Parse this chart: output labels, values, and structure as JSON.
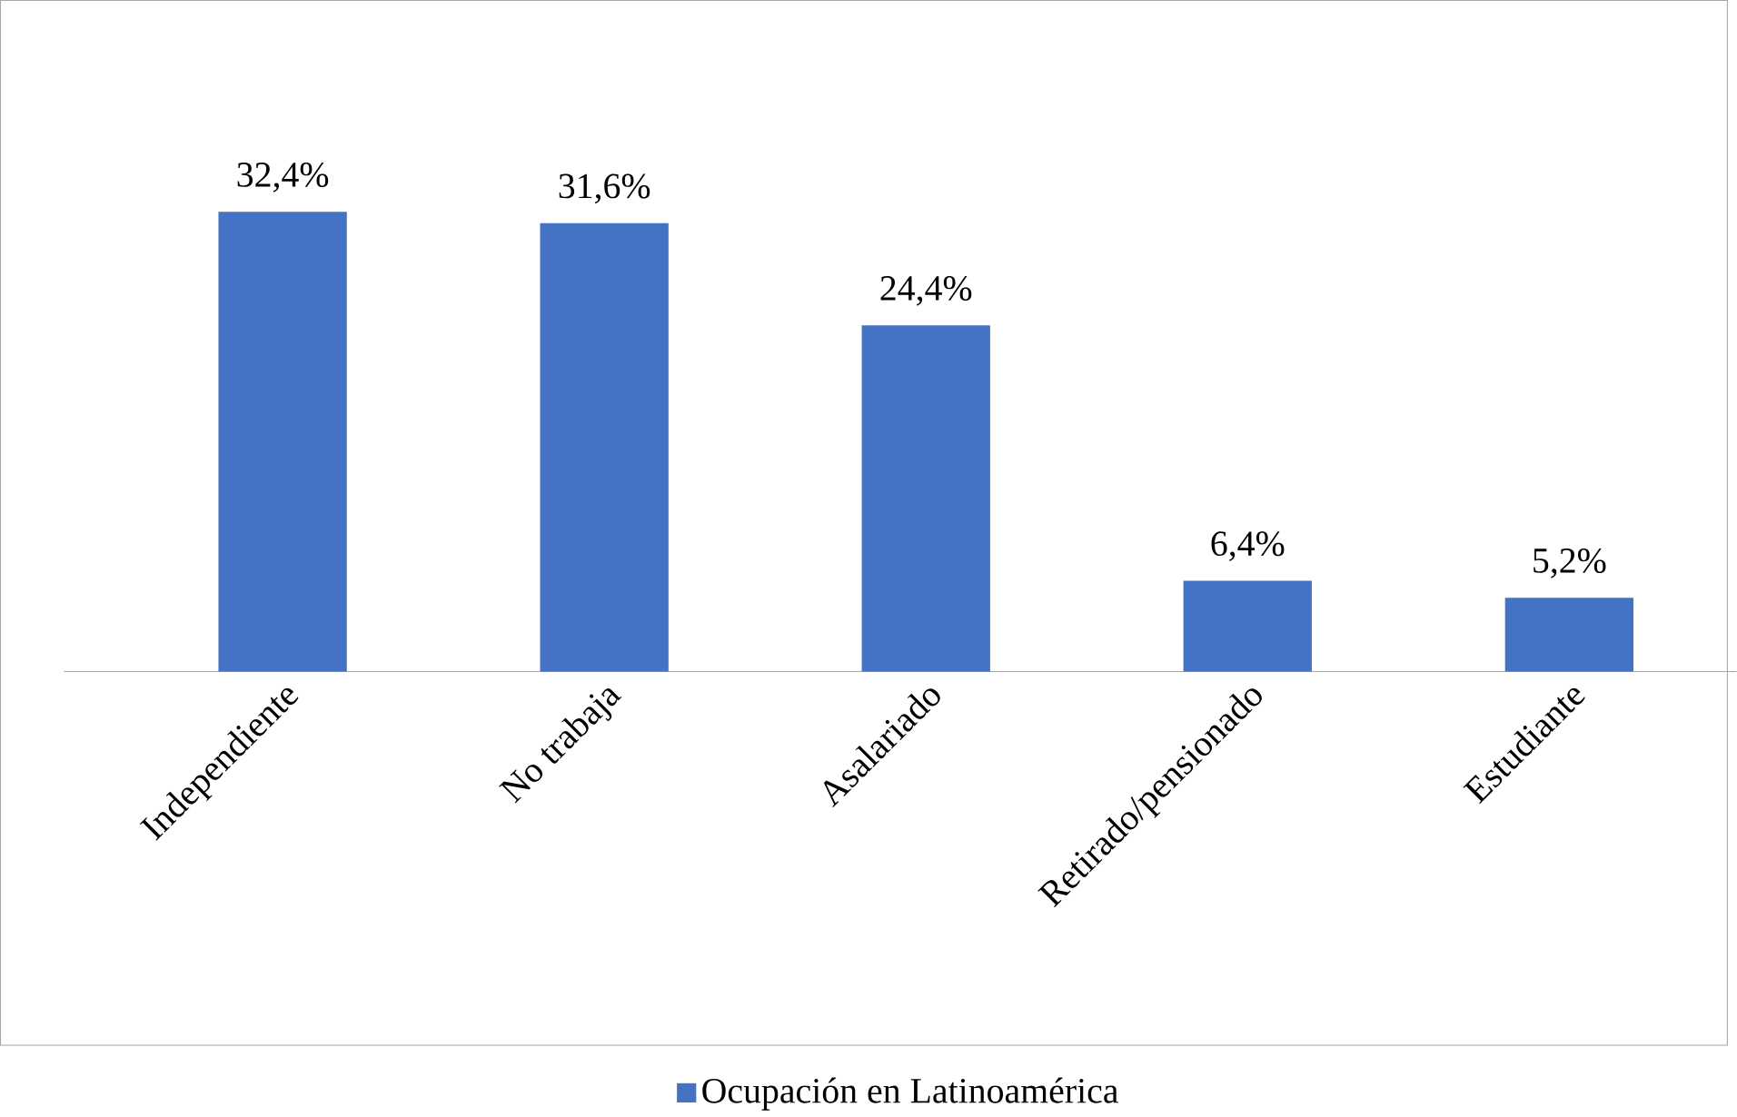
{
  "chart_data": {
    "type": "bar",
    "categories": [
      "Independiente",
      "No trabaja",
      "Asalariado",
      "Retirado/pensionado",
      "Estudiante"
    ],
    "series": [
      {
        "name": "Ocupación en Latinoamérica",
        "color": "#4472c4",
        "values": [
          32.4,
          31.6,
          24.4,
          6.4,
          5.2
        ],
        "value_labels": [
          "32,4%",
          "31,6%",
          "24,4%",
          "6,4%",
          "5,2%"
        ]
      }
    ],
    "legend": "bottom"
  }
}
